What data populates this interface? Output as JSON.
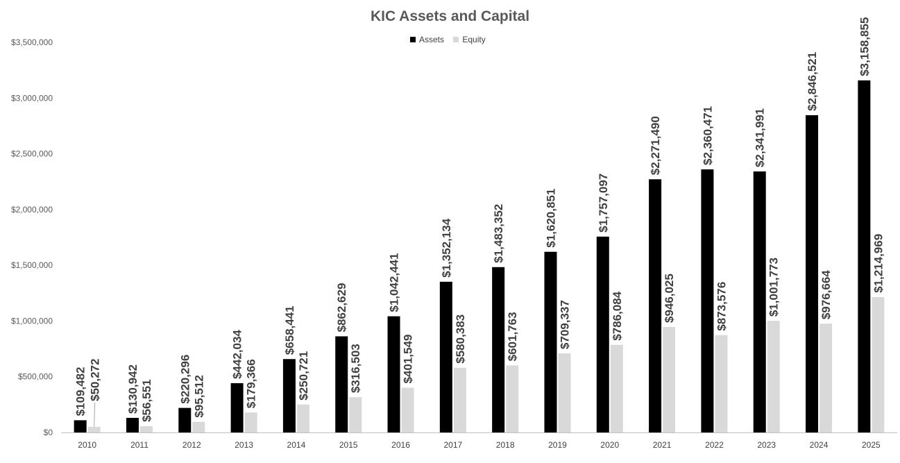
{
  "chart_data": {
    "type": "bar",
    "title": "KIC Assets and Capital",
    "xlabel": "",
    "ylabel": "",
    "categories": [
      "2010",
      "2011",
      "2012",
      "2013",
      "2014",
      "2015",
      "2016",
      "2017",
      "2018",
      "2019",
      "2020",
      "2021",
      "2022",
      "2023",
      "2024",
      "2025"
    ],
    "series": [
      {
        "name": "Assets",
        "color": "#000000",
        "values": [
          109482,
          130942,
          220296,
          442034,
          658441,
          862629,
          1042441,
          1352134,
          1483352,
          1620851,
          1757097,
          2271490,
          2360471,
          2341991,
          2846521,
          3158855
        ],
        "labels": [
          "$109,482",
          "$130,942",
          "$220,296",
          "$442,034",
          "$658,441",
          "$862,629",
          "$1,042,441",
          "$1,352,134",
          "$1,483,352",
          "$1,620,851",
          "$1,757,097",
          "$2,271,490",
          "$2,360,471",
          "$2,341,991",
          "$2,846,521",
          "$3,158,855"
        ]
      },
      {
        "name": "Equity",
        "color": "#d9d9d9",
        "values": [
          50272,
          56551,
          95512,
          179366,
          250721,
          316503,
          401549,
          580383,
          601763,
          709337,
          786084,
          946025,
          873576,
          1001773,
          976664,
          1214969
        ],
        "labels": [
          "$50,272",
          "$56,551",
          "$95,512",
          "$179,366",
          "$250,721",
          "$316,503",
          "$401,549",
          "$580,383",
          "$601,763",
          "$709,337",
          "$786,084",
          "$946,025",
          "$873,576",
          "$1,001,773",
          "$976,664",
          "$1,214,969"
        ]
      }
    ],
    "ylim": [
      0,
      3500000
    ],
    "yticks": [
      0,
      500000,
      1000000,
      1500000,
      2000000,
      2500000,
      3000000,
      3500000
    ],
    "ytick_labels": [
      "$0",
      "$500,000",
      "$1,000,000",
      "$1,500,000",
      "$2,000,000",
      "$2,500,000",
      "$3,000,000",
      "$3,500,000"
    ],
    "grid": false,
    "legend_position": "top"
  }
}
